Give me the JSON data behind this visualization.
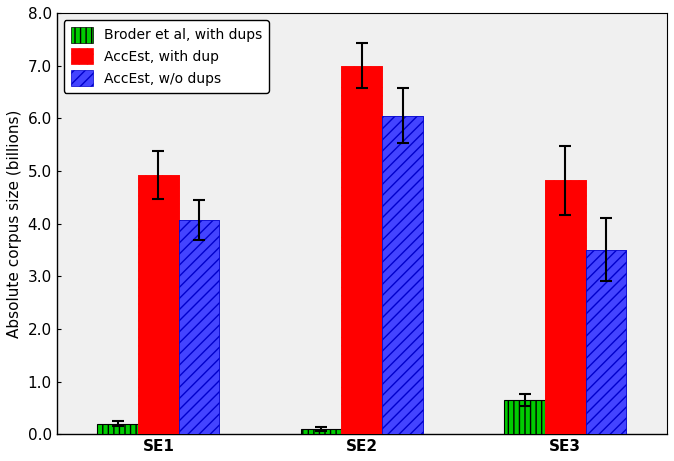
{
  "categories": [
    "SE1",
    "SE2",
    "SE3"
  ],
  "series": {
    "broder": {
      "label": "Broder et al, with dups",
      "values": [
        0.2,
        0.1,
        0.65
      ],
      "errors": [
        0.05,
        0.03,
        0.12
      ],
      "facecolor": "#00cc00",
      "hatch": "|||",
      "edgecolor": "#000000"
    },
    "accdups": {
      "label": "AccEst, with dup",
      "values": [
        4.92,
        7.0,
        4.82
      ],
      "errors": [
        0.45,
        0.42,
        0.65
      ],
      "facecolor": "#ff0000",
      "hatch": "....",
      "edgecolor": "#ff0000"
    },
    "accnodups": {
      "label": "AccEst, w/o dups",
      "values": [
        4.07,
        6.05,
        3.5
      ],
      "errors": [
        0.38,
        0.52,
        0.6
      ],
      "facecolor": "#4444ff",
      "hatch": "///",
      "edgecolor": "#0000cc"
    }
  },
  "ylabel": "Absolute corpus size (billions)",
  "ylim": [
    0.0,
    8.0
  ],
  "yticks": [
    0.0,
    1.0,
    2.0,
    3.0,
    4.0,
    5.0,
    6.0,
    7.0,
    8.0
  ],
  "bar_width": 0.2,
  "background_color": "#f0f0f0",
  "legend_loc": "upper left",
  "tick_fontsize": 11,
  "label_fontsize": 11
}
